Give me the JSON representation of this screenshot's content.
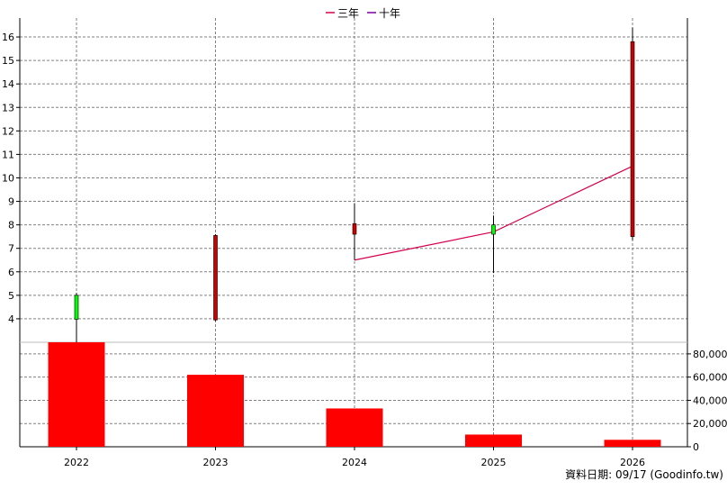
{
  "colors": {
    "up_candle": "#00ff00",
    "down_candle": "#cc0000",
    "volume_bar": "#ff0000",
    "ma3": "#d6004f",
    "ma10": "#7a00a8",
    "grid": "#808080",
    "axis": "#000000"
  },
  "footer": {
    "source": "資料日期: 09/17  (Goodinfo.tw)"
  },
  "chart_data": {
    "type": "candlestick+bar",
    "legend": {
      "placement": "top-center",
      "items": [
        "三年",
        "十年"
      ]
    },
    "categories": [
      "2022",
      "2023",
      "2024",
      "2025",
      "2026"
    ],
    "price": {
      "ylim": [
        3,
        16.5
      ],
      "yticks": [
        4,
        5,
        6,
        7,
        8,
        9,
        10,
        11,
        12,
        13,
        14,
        15,
        16
      ],
      "candles": [
        {
          "open": 3.98,
          "close": 5.0,
          "high": 5.1,
          "low": 3.0
        },
        {
          "open": 7.55,
          "close": 3.95,
          "high": 7.6,
          "low": 3.9
        },
        {
          "open": 8.05,
          "close": 7.6,
          "high": 8.9,
          "low": 6.5
        },
        {
          "open": 7.6,
          "close": 8.0,
          "high": 8.4,
          "low": 5.95
        },
        {
          "open": 15.8,
          "close": 7.5,
          "high": 16.4,
          "low": 7.35
        }
      ],
      "ma3": [
        null,
        null,
        6.5,
        7.7,
        10.5
      ],
      "ma10": [
        null,
        null,
        null,
        null,
        null
      ]
    },
    "volume": {
      "ylim": [
        0,
        90000
      ],
      "yticks": [
        0,
        20000,
        40000,
        60000,
        80000
      ],
      "ytick_labels": [
        "0",
        "20,000",
        "40,000",
        "60,000",
        "80,000"
      ],
      "values": [
        90000,
        62000,
        33000,
        10500,
        6000
      ]
    },
    "grid": true
  }
}
